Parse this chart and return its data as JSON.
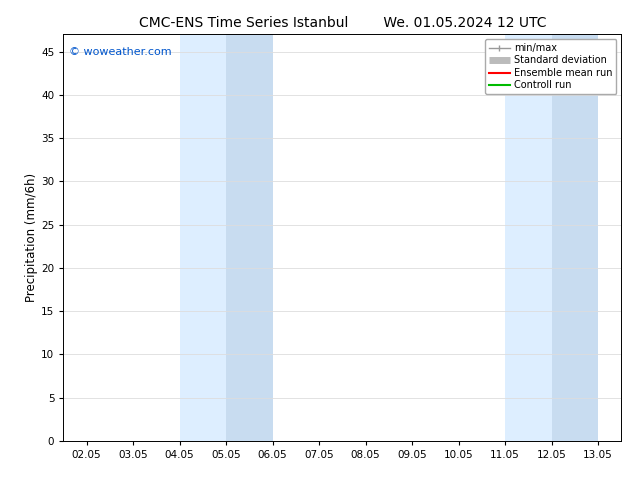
{
  "title_left": "CMC-ENS Time Series Istanbul",
  "title_right": "We. 01.05.2024 12 UTC",
  "ylabel": "Precipitation (mm/6h)",
  "xlim_start": 1.5,
  "xlim_end": 13.5,
  "ylim": [
    0,
    47
  ],
  "yticks": [
    0,
    5,
    10,
    15,
    20,
    25,
    30,
    35,
    40,
    45
  ],
  "xtick_labels": [
    "02.05",
    "03.05",
    "04.05",
    "05.05",
    "06.05",
    "07.05",
    "08.05",
    "09.05",
    "10.05",
    "11.05",
    "12.05",
    "13.05"
  ],
  "xtick_positions": [
    2,
    3,
    4,
    5,
    6,
    7,
    8,
    9,
    10,
    11,
    12,
    13
  ],
  "shaded_bands": [
    {
      "x_start": 4.0,
      "x_end": 5.0,
      "color": "#ddeeff"
    },
    {
      "x_start": 5.0,
      "x_end": 6.0,
      "color": "#c8dcf0"
    },
    {
      "x_start": 11.0,
      "x_end": 12.0,
      "color": "#ddeeff"
    },
    {
      "x_start": 12.0,
      "x_end": 13.0,
      "color": "#c8dcf0"
    }
  ],
  "watermark_text": "© woweather.com",
  "watermark_color": "#0055cc",
  "legend_items": [
    {
      "label": "min/max",
      "color": "#999999",
      "lw": 1.0
    },
    {
      "label": "Standard deviation",
      "color": "#bbbbbb",
      "lw": 5
    },
    {
      "label": "Ensemble mean run",
      "color": "#ff0000",
      "lw": 1.5
    },
    {
      "label": "Controll run",
      "color": "#00bb00",
      "lw": 1.5
    }
  ],
  "bg_color": "#ffffff",
  "spine_color": "#000000",
  "grid_color": "#dddddd",
  "title_fontsize": 10,
  "tick_fontsize": 7.5,
  "ylabel_fontsize": 8.5,
  "watermark_fontsize": 8
}
